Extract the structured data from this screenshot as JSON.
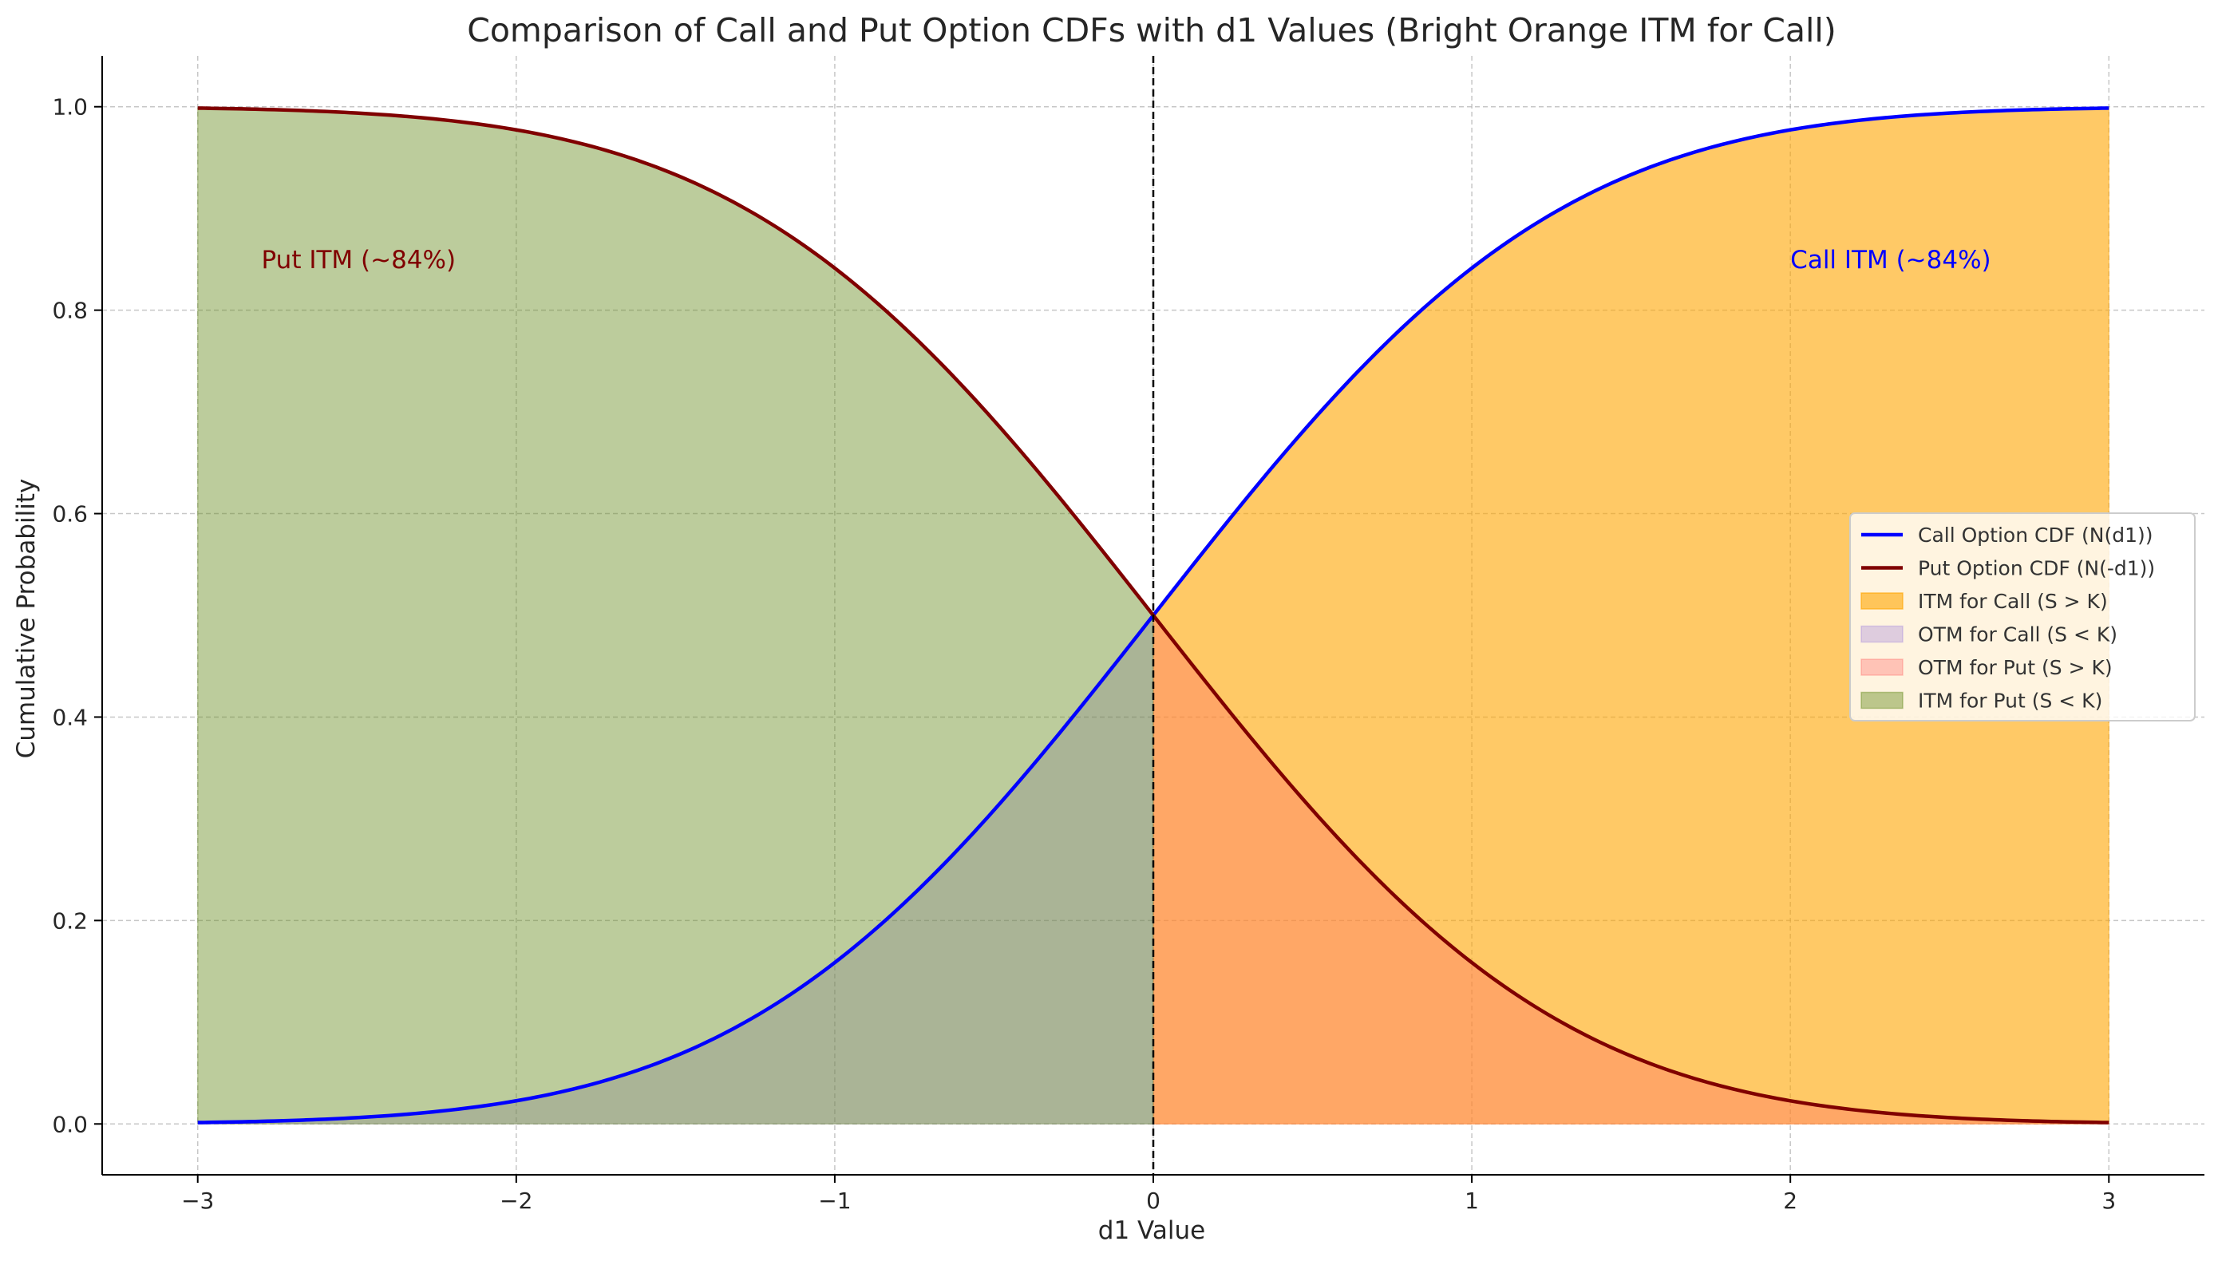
{
  "chart_data": {
    "type": "line",
    "title": "Comparison of Call and Put Option CDFs with d1 Values (Bright Orange ITM for Call)",
    "xlabel": "d1 Value",
    "ylabel": "Cumulative Probability",
    "xlim": [
      -3.3,
      3.3
    ],
    "ylim": [
      -0.05,
      1.05
    ],
    "xticks": [
      -3,
      -2,
      -1,
      0,
      1,
      2,
      3
    ],
    "xtick_labels": [
      "−3",
      "−2",
      "−1",
      "0",
      "1",
      "2",
      "3"
    ],
    "yticks": [
      0.0,
      0.2,
      0.4,
      0.6,
      0.8,
      1.0
    ],
    "ytick_labels": [
      "0.0",
      "0.2",
      "0.4",
      "0.6",
      "0.8",
      "1.0"
    ],
    "grid": true,
    "legend_position": "center-right",
    "vertical_line": {
      "x": 0,
      "style": "dashed",
      "color": "#000000"
    },
    "x": [
      -3.0,
      -2.5,
      -2.0,
      -1.5,
      -1.0,
      -0.5,
      0.0,
      0.5,
      1.0,
      1.5,
      2.0,
      2.5,
      3.0
    ],
    "series": [
      {
        "name": "Call Option CDF (N(d1))",
        "color": "#0000ff",
        "values": [
          0.001,
          0.006,
          0.023,
          0.067,
          0.159,
          0.309,
          0.5,
          0.691,
          0.841,
          0.933,
          0.977,
          0.994,
          0.999
        ]
      },
      {
        "name": "Put Option CDF (N(-d1))",
        "color": "#800000",
        "values": [
          0.999,
          0.994,
          0.977,
          0.933,
          0.841,
          0.691,
          0.5,
          0.309,
          0.159,
          0.067,
          0.023,
          0.006,
          0.001
        ]
      }
    ],
    "fills": [
      {
        "name": "ITM for Call (S > K)",
        "color": "#ffa500",
        "alpha": 0.6,
        "x_range": [
          0,
          3
        ],
        "between": [
          "call",
          "zero"
        ]
      },
      {
        "name": "OTM for Call (S < K)",
        "color": "#9370db",
        "alpha": 0.3,
        "x_range": [
          -3,
          0
        ],
        "between": [
          "call",
          "zero"
        ]
      },
      {
        "name": "OTM for Put (S > K)",
        "color": "#ff6666",
        "alpha": 0.35,
        "x_range": [
          0,
          3
        ],
        "between": [
          "put",
          "zero"
        ]
      },
      {
        "name": "ITM for Put (S < K)",
        "color": "#6b8e23",
        "alpha": 0.45,
        "x_range": [
          -3,
          0
        ],
        "between": [
          "put",
          "zero"
        ]
      }
    ],
    "annotations": [
      {
        "text": "Put ITM (~84%)",
        "x": -2.8,
        "y": 0.85,
        "color": "#800000"
      },
      {
        "text": "Call ITM (~84%)",
        "x": 2.0,
        "y": 0.85,
        "color": "#0000ff"
      }
    ]
  }
}
